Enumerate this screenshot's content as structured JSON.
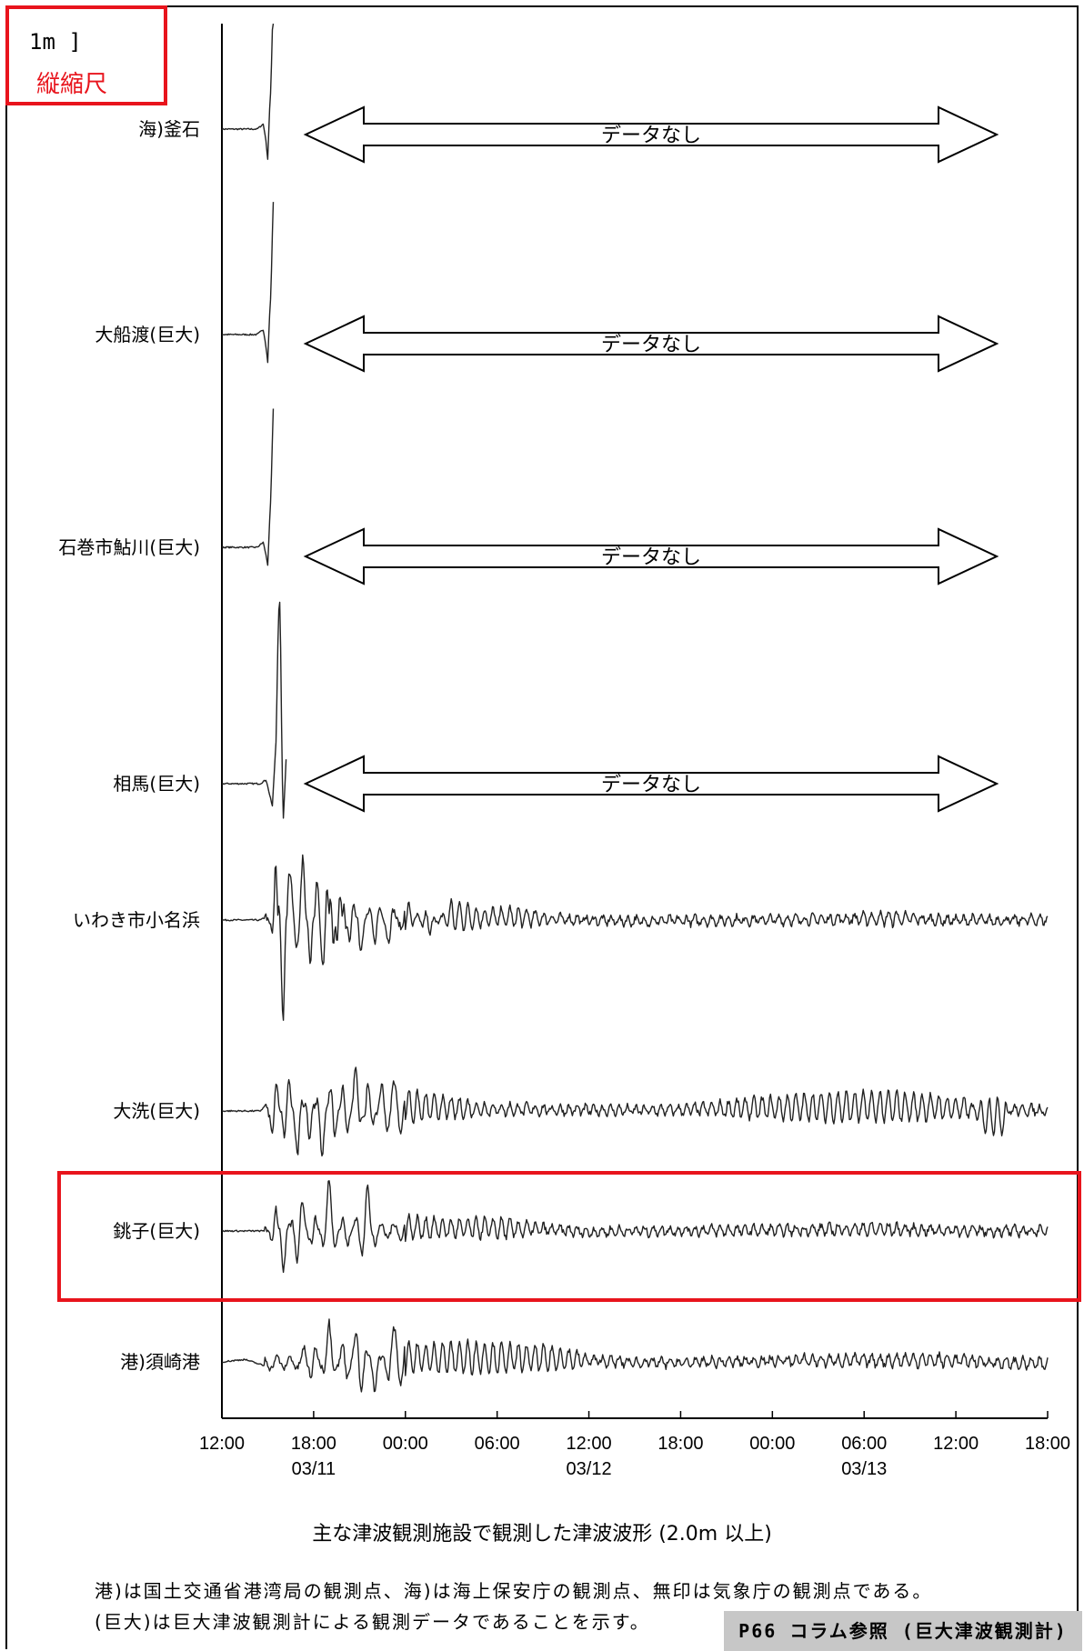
{
  "scale": {
    "value": "1m ]",
    "label": "縦縮尺"
  },
  "caption": "主な津波観測施設で観測した津波波形 (2.0m 以上)",
  "notes": [
    "港)は国土交通省港湾局の観測点、海)は海上保安庁の観測点、無印は気象庁の観測点である。",
    "(巨大)は巨大津波観測計による観測データであることを示す。"
  ],
  "reference": "P66 コラム参照 (巨大津波観測計)",
  "colors": {
    "highlight": "#e8141c",
    "trace": "#222222",
    "axis": "#000000",
    "ref_badge": "#c7c7c7"
  },
  "chart_data": {
    "type": "line",
    "x_unit": "hours from 03/11 12:00",
    "xlim": [
      0,
      54
    ],
    "x_ticks": [
      {
        "x": 0,
        "label": "12:00"
      },
      {
        "x": 6,
        "label": "18:00"
      },
      {
        "x": 12,
        "label": "00:00"
      },
      {
        "x": 18,
        "label": "06:00"
      },
      {
        "x": 24,
        "label": "12:00"
      },
      {
        "x": 30,
        "label": "18:00"
      },
      {
        "x": 36,
        "label": "00:00"
      },
      {
        "x": 42,
        "label": "06:00"
      },
      {
        "x": 48,
        "label": "12:00"
      },
      {
        "x": 54,
        "label": "18:00"
      }
    ],
    "date_labels": [
      {
        "x": 6,
        "label": "03/11"
      },
      {
        "x": 24,
        "label": "03/12"
      },
      {
        "x": 42,
        "label": "03/13"
      }
    ],
    "no_data_label": "データなし",
    "highlighted_station": "銚子(巨大)",
    "stations": [
      {
        "name": "海)釜石",
        "data_end": 3.4,
        "no_data": true,
        "points": [
          [
            0,
            0
          ],
          [
            2.3,
            0
          ],
          [
            2.7,
            0.1
          ],
          [
            2.85,
            -0.15
          ],
          [
            3.0,
            -0.6
          ],
          [
            3.1,
            0.3
          ],
          [
            3.2,
            0.8
          ],
          [
            3.35,
            2.6
          ],
          [
            3.4,
            2.9
          ]
        ]
      },
      {
        "name": "大船渡(巨大)",
        "data_end": 3.4,
        "no_data": true,
        "points": [
          [
            0,
            0
          ],
          [
            2.3,
            0
          ],
          [
            2.7,
            0.1
          ],
          [
            2.85,
            -0.15
          ],
          [
            3.0,
            -0.55
          ],
          [
            3.1,
            0.3
          ],
          [
            3.2,
            0.8
          ],
          [
            3.35,
            2.6
          ],
          [
            3.4,
            2.9
          ]
        ]
      },
      {
        "name": "石巻市鮎川(巨大)",
        "data_end": 3.4,
        "no_data": true,
        "points": [
          [
            0,
            0
          ],
          [
            2.3,
            0
          ],
          [
            2.7,
            0.1
          ],
          [
            2.85,
            -0.1
          ],
          [
            3.0,
            -0.35
          ],
          [
            3.1,
            0.4
          ],
          [
            3.2,
            1.0
          ],
          [
            3.35,
            2.7
          ],
          [
            3.4,
            3.0
          ]
        ]
      },
      {
        "name": "相馬(巨大)",
        "data_end": 4.2,
        "no_data": true,
        "points": [
          [
            0,
            0
          ],
          [
            2.5,
            0
          ],
          [
            2.9,
            0.08
          ],
          [
            3.1,
            -0.2
          ],
          [
            3.3,
            -0.45
          ],
          [
            3.55,
            0.9
          ],
          [
            3.7,
            3.4
          ],
          [
            3.8,
            3.7
          ],
          [
            3.9,
            1.2
          ],
          [
            4.0,
            -0.8
          ],
          [
            4.1,
            -0.2
          ],
          [
            4.2,
            0.5
          ]
        ]
      },
      {
        "name": "いわき市小名浜",
        "data_end": 54,
        "no_data": false,
        "amplitude": 1.0,
        "points": [
          [
            0,
            0
          ],
          [
            2.5,
            0
          ],
          [
            3.2,
            0.1
          ],
          [
            3.5,
            1.4
          ],
          [
            3.8,
            -1.3
          ],
          [
            4.0,
            -1.9
          ],
          [
            4.3,
            0.9
          ],
          [
            4.8,
            0.6
          ],
          [
            5.3,
            1.1
          ],
          [
            5.8,
            -0.9
          ],
          [
            6.2,
            0.7
          ],
          [
            6.8,
            1.4
          ],
          [
            7.2,
            -1.4
          ],
          [
            7.6,
            1.3
          ],
          [
            8.0,
            -0.7
          ],
          [
            8.4,
            0.9
          ],
          [
            9.0,
            -0.6
          ],
          [
            10.0,
            0.6
          ],
          [
            11.0,
            -0.5
          ],
          [
            12.0,
            0.5
          ],
          [
            13.5,
            -0.4
          ],
          [
            15.0,
            0.45
          ],
          [
            17.0,
            0.25
          ],
          [
            19.0,
            0.3
          ],
          [
            21.0,
            0.15
          ],
          [
            24.0,
            0.0
          ],
          [
            27.0,
            -0.1
          ],
          [
            30.0,
            -0.05
          ],
          [
            34.0,
            0.0
          ],
          [
            38.0,
            0.05
          ],
          [
            42.0,
            0.15
          ],
          [
            44.0,
            0.2
          ],
          [
            47.0,
            0.0
          ],
          [
            51.0,
            -0.05
          ],
          [
            54.0,
            0.05
          ]
        ]
      },
      {
        "name": "大洗(巨大)",
        "data_end": 54,
        "no_data": false,
        "amplitude": 1.0,
        "points": [
          [
            0,
            0
          ],
          [
            2.5,
            0
          ],
          [
            3.0,
            0.15
          ],
          [
            3.5,
            -0.9
          ],
          [
            4.2,
            1.0
          ],
          [
            5.0,
            -0.9
          ],
          [
            5.7,
            0.8
          ],
          [
            6.5,
            -0.9
          ],
          [
            7.3,
            0.9
          ],
          [
            8.0,
            -0.85
          ],
          [
            8.8,
            0.9
          ],
          [
            9.5,
            -0.7
          ],
          [
            10.5,
            0.5
          ],
          [
            12.0,
            0.5
          ],
          [
            13.5,
            0.35
          ],
          [
            15.0,
            0.3
          ],
          [
            17.0,
            0.2
          ],
          [
            20.0,
            0.15
          ],
          [
            23.0,
            0.1
          ],
          [
            25.0,
            0.1
          ],
          [
            28.0,
            0.05
          ],
          [
            31.0,
            0.15
          ],
          [
            35.0,
            0.3
          ],
          [
            39.0,
            0.4
          ],
          [
            43.0,
            0.45
          ],
          [
            47.0,
            0.35
          ],
          [
            49.0,
            0.25
          ],
          [
            49.6,
            -0.5
          ],
          [
            51.2,
            -0.5
          ],
          [
            51.5,
            0.1
          ],
          [
            54.0,
            0.1
          ]
        ]
      },
      {
        "name": "銚子(巨大)",
        "data_end": 54,
        "no_data": false,
        "amplitude": 1.0,
        "points": [
          [
            0,
            0
          ],
          [
            3.0,
            0
          ],
          [
            3.5,
            0.55
          ],
          [
            4.0,
            -0.75
          ],
          [
            5.0,
            0.9
          ],
          [
            6.0,
            -0.5
          ],
          [
            7.0,
            0.9
          ],
          [
            8.0,
            -0.45
          ],
          [
            9.5,
            0.9
          ],
          [
            10.0,
            -0.3
          ],
          [
            12.0,
            0.35
          ],
          [
            15.0,
            0.25
          ],
          [
            18.0,
            0.3
          ],
          [
            21.0,
            0.15
          ],
          [
            24.0,
            -0.1
          ],
          [
            27.0,
            0.0
          ],
          [
            30.0,
            0.05
          ],
          [
            34.0,
            0.05
          ],
          [
            38.0,
            0.1
          ],
          [
            42.0,
            0.2
          ],
          [
            46.0,
            0.1
          ],
          [
            50.0,
            0.0
          ],
          [
            54.0,
            0.0
          ]
        ]
      },
      {
        "name": "港)須崎港",
        "data_end": 54,
        "no_data": false,
        "amplitude": 1.0,
        "points": [
          [
            0,
            0
          ],
          [
            1.5,
            0.05
          ],
          [
            3.0,
            -0.1
          ],
          [
            5.0,
            -0.1
          ],
          [
            5.4,
            0.3
          ],
          [
            6.0,
            -0.55
          ],
          [
            7.0,
            0.7
          ],
          [
            8.0,
            -0.6
          ],
          [
            9.0,
            0.9
          ],
          [
            10.0,
            -0.55
          ],
          [
            11.0,
            0.6
          ],
          [
            13.0,
            0.4
          ],
          [
            16.0,
            0.45
          ],
          [
            19.0,
            0.4
          ],
          [
            22.0,
            0.35
          ],
          [
            24.0,
            0.15
          ],
          [
            27.0,
            -0.05
          ],
          [
            30.0,
            -0.1
          ],
          [
            34.0,
            0.05
          ],
          [
            38.0,
            0.15
          ],
          [
            42.0,
            0.15
          ],
          [
            46.0,
            0.2
          ],
          [
            49.0,
            0.1
          ],
          [
            51.0,
            -0.1
          ],
          [
            54.0,
            -0.2
          ]
        ]
      }
    ]
  }
}
